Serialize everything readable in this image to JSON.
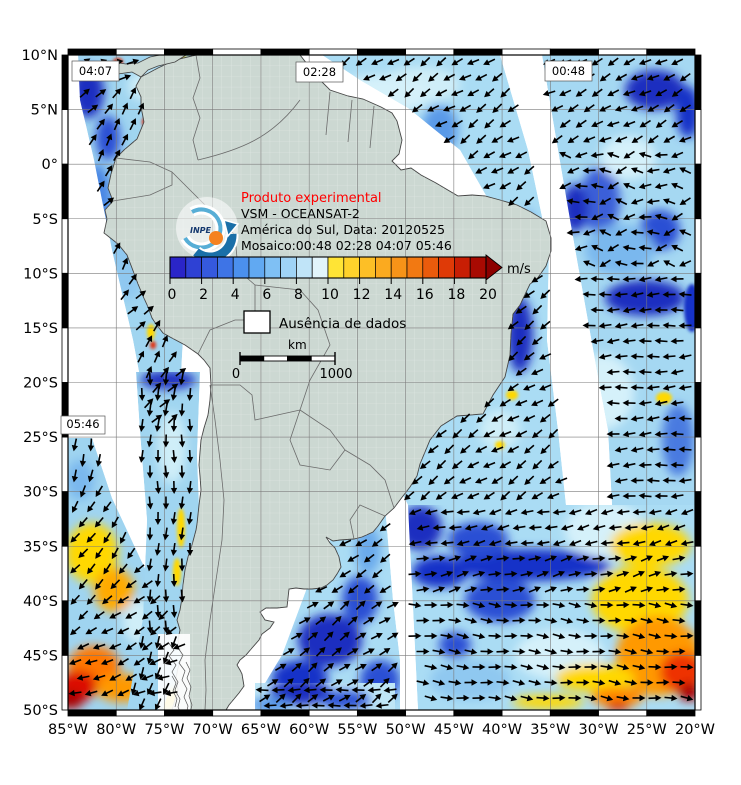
{
  "title": {
    "line1": "Produto experimental",
    "line2": "VSM - OCEANSAT-2",
    "line3": "América do Sul, Data: 20120525",
    "line4": "Mosaico:00:48 02:28 04:07 05:46"
  },
  "map": {
    "time_labels": [
      "04:07",
      "02:28",
      "00:48",
      "05:46"
    ]
  },
  "axes": {
    "lat_labels": [
      "10°N",
      "5°N",
      "0°",
      "5°S",
      "10°S",
      "15°S",
      "20°S",
      "25°S",
      "30°S",
      "35°S",
      "40°S",
      "45°S",
      "50°S"
    ],
    "lon_labels": [
      "85°W",
      "80°W",
      "75°W",
      "70°W",
      "65°W",
      "60°W",
      "55°W",
      "50°W",
      "45°W",
      "40°W",
      "35°W",
      "30°W",
      "25°W",
      "20°W"
    ]
  },
  "colorbar": {
    "unit": "m/s",
    "tick_labels": [
      "0",
      "2",
      "4",
      "6",
      "8",
      "10",
      "12",
      "14",
      "16",
      "18",
      "20"
    ],
    "cell_colors": [
      "#2a25c8",
      "#2e41d4",
      "#3559de",
      "#3e74e6",
      "#4b90ee",
      "#61a9f2",
      "#7fc0f4",
      "#9fd3f6",
      "#c0e4f8",
      "#e2f4fb",
      "#ffe435",
      "#ffd22b",
      "#fdbf26",
      "#fbaa1f",
      "#f79318",
      "#f27912",
      "#ea5b0c",
      "#df3a07",
      "#c81e04",
      "#a80a02"
    ],
    "arrow_color": "#8c0000"
  },
  "legend": {
    "no_data_label": "Ausência de dados"
  },
  "scalebar": {
    "unit": "km",
    "start_label": "0",
    "end_label": "1000"
  },
  "logo": {
    "text": "INPE"
  },
  "colors": {
    "land": "#ccd8d2",
    "border": "#6b6b6b",
    "grid": "#7a7a7a",
    "no_data": "#ffffff"
  }
}
